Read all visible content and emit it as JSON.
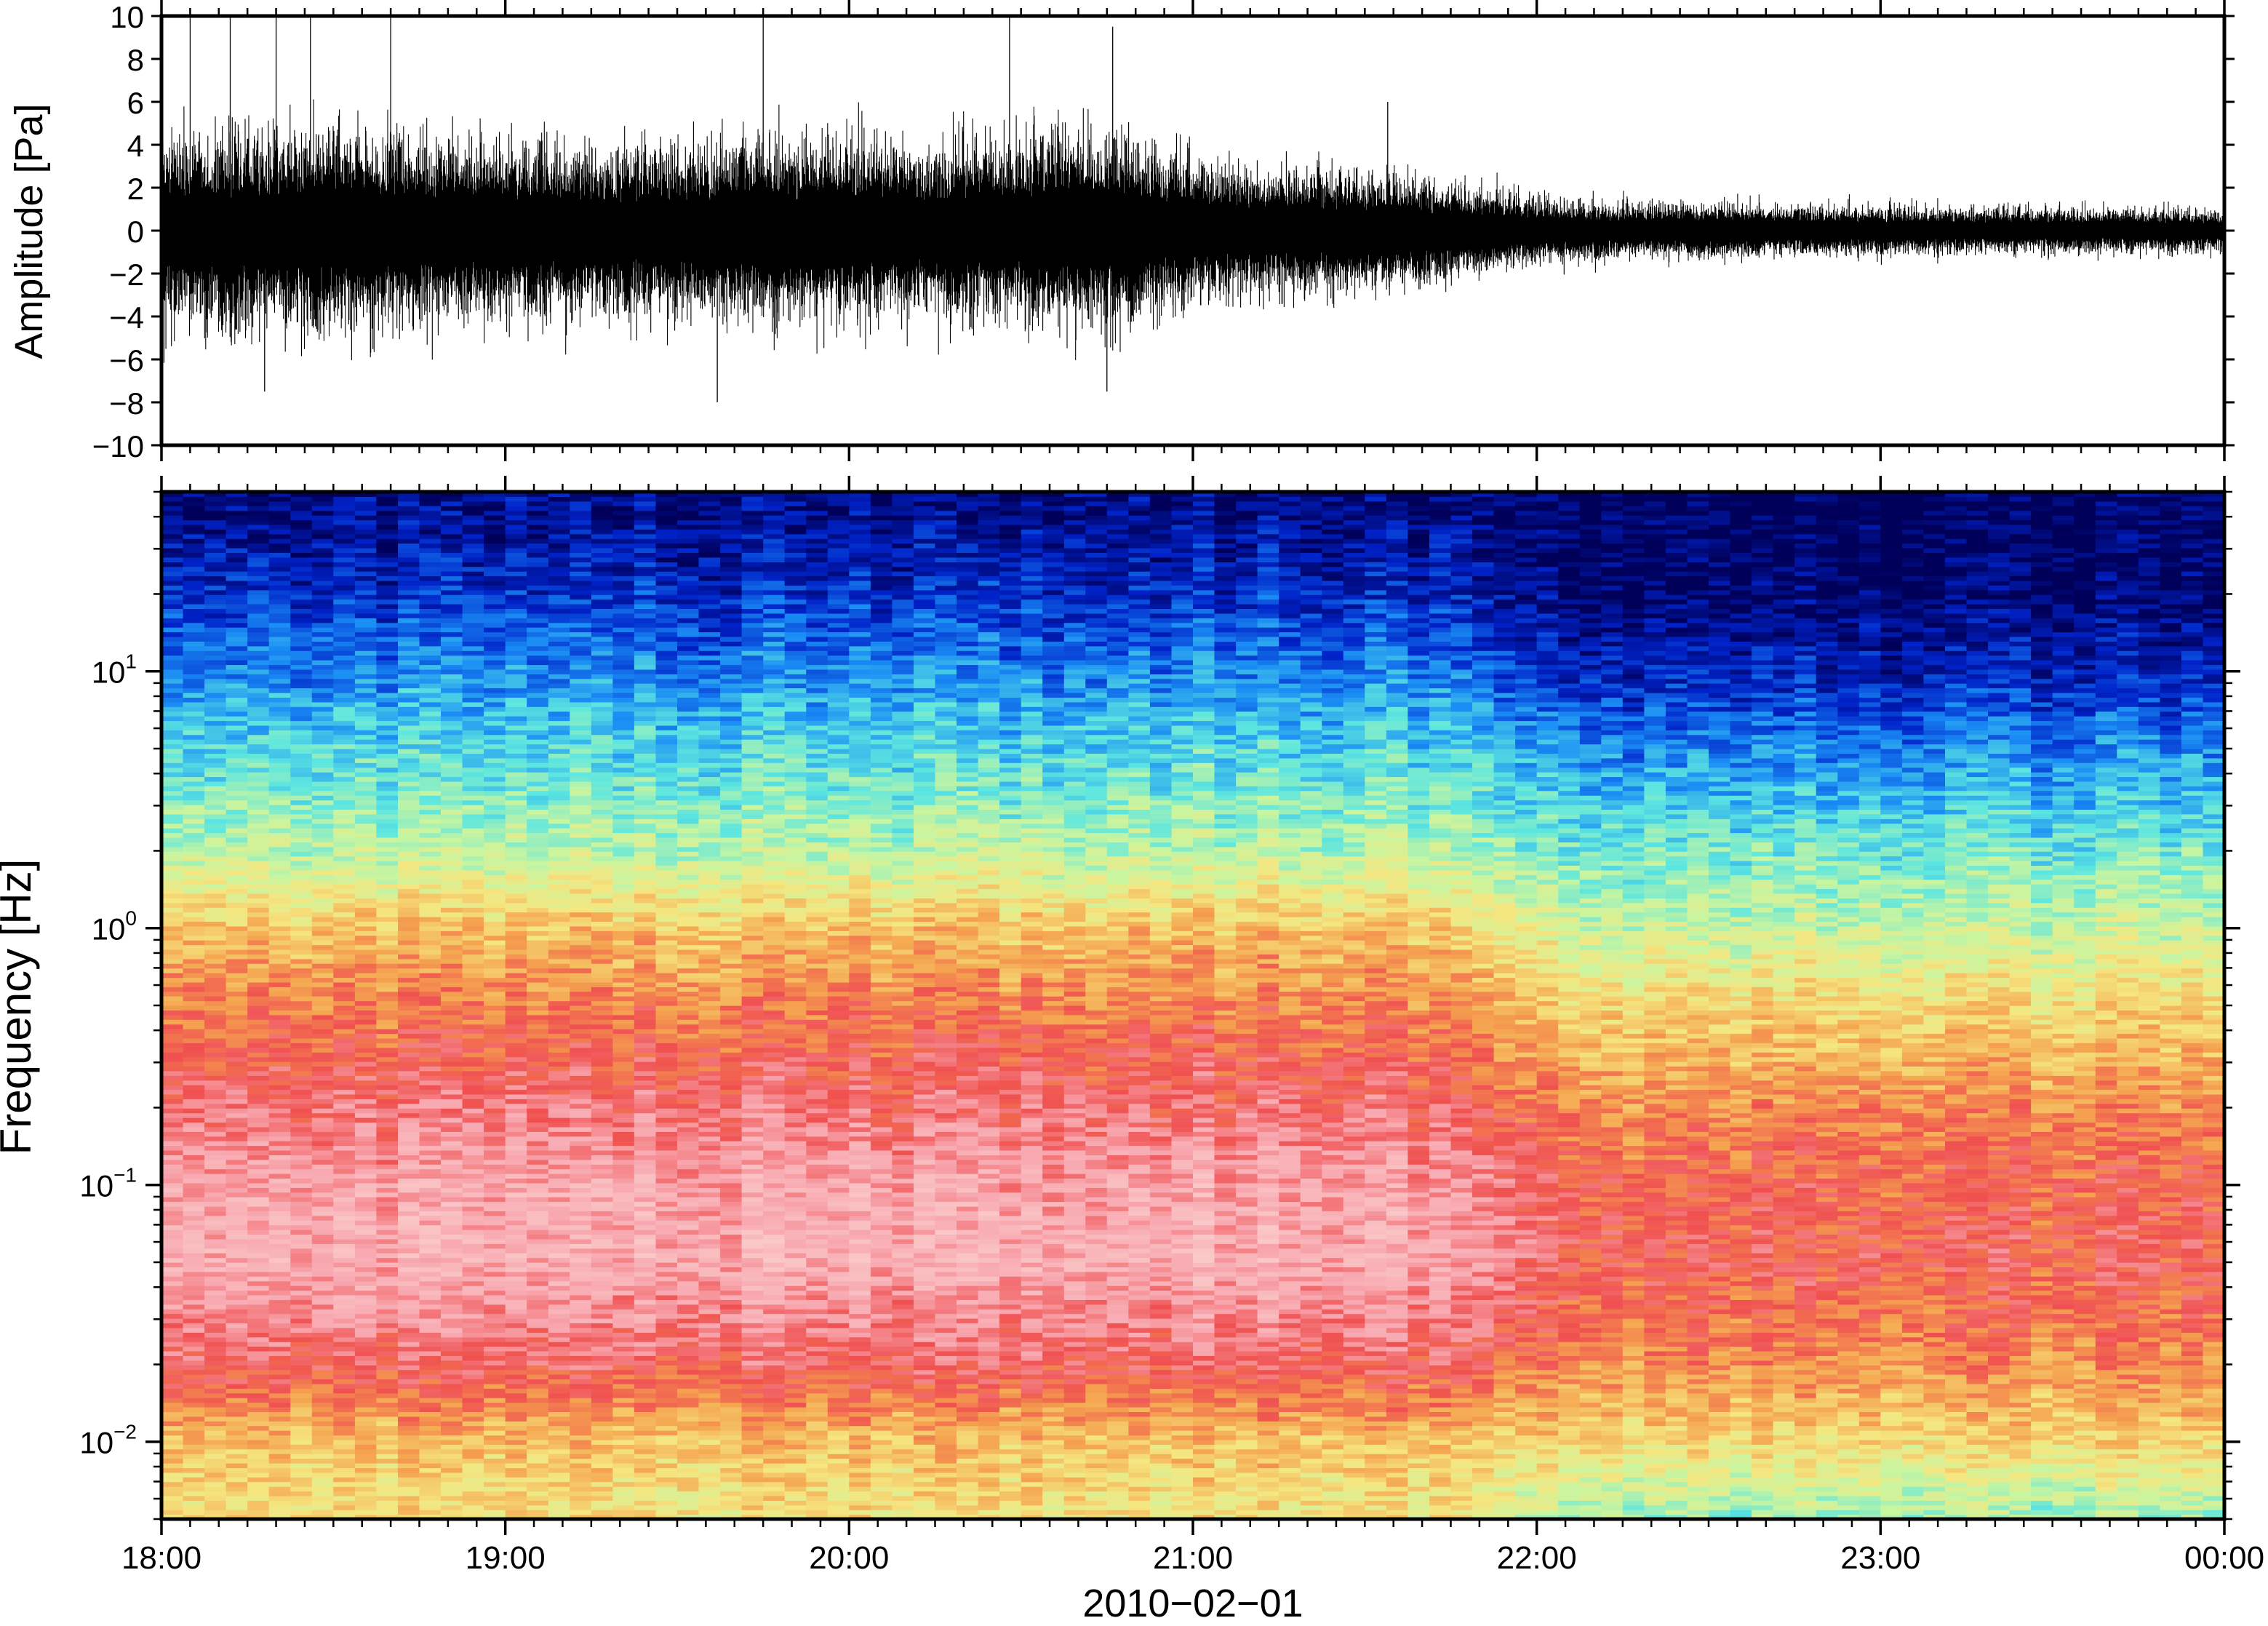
{
  "chart_data": [
    {
      "type": "line",
      "panel": "waveform",
      "ylabel": "Amplitude [Pa]",
      "ylim": [
        -10,
        10
      ],
      "yticks": [
        -10,
        -8,
        -6,
        -4,
        -2,
        0,
        2,
        4,
        6,
        8,
        10
      ],
      "ytick_labels": [
        "−10",
        "−8",
        "−6",
        "−4",
        "−2",
        "0",
        "2",
        "4",
        "6",
        "8",
        "10"
      ],
      "x_range": [
        "18:00",
        "00:00"
      ],
      "series": [
        {
          "x": [
            "18:00",
            "18:15",
            "18:30",
            "18:45",
            "19:00",
            "19:15",
            "19:30",
            "19:45",
            "20:00",
            "20:15",
            "20:30",
            "20:45",
            "21:00",
            "21:15",
            "21:30",
            "21:45",
            "22:00",
            "22:15",
            "22:30",
            "22:45",
            "23:00",
            "23:15",
            "23:30",
            "23:45",
            "00:00"
          ],
          "envelope_pa": [
            6.0,
            6.5,
            6.5,
            6.0,
            5.5,
            5.5,
            5.5,
            6.0,
            6.0,
            5.5,
            6.0,
            6.5,
            4.5,
            4.0,
            3.8,
            3.2,
            2.2,
            1.8,
            1.8,
            1.6,
            1.6,
            1.5,
            1.5,
            1.4,
            1.4
          ],
          "peaks_pa": [
            {
              "time": "18:05",
              "value": 10
            },
            {
              "time": "18:12",
              "value": 10
            },
            {
              "time": "18:20",
              "value": 10
            },
            {
              "time": "18:26",
              "value": 10
            },
            {
              "time": "18:40",
              "value": 10
            },
            {
              "time": "19:45",
              "value": 10
            },
            {
              "time": "20:28",
              "value": 10
            },
            {
              "time": "20:46",
              "value": 9.5
            },
            {
              "time": "21:34",
              "value": 6
            },
            {
              "time": "18:18",
              "value": -7.5
            },
            {
              "time": "19:37",
              "value": -8
            },
            {
              "time": "20:45",
              "value": -7.5
            }
          ]
        }
      ]
    },
    {
      "type": "heatmap",
      "panel": "spectrogram",
      "ylabel": "Frequency [Hz]",
      "xlabel": "2010−02−01",
      "y_scale": "log",
      "ylim": [
        0.005,
        50
      ],
      "yticks": [
        0.01,
        0.1,
        1,
        10
      ],
      "ytick_labels": [
        {
          "base": "10",
          "exp": "−2"
        },
        {
          "base": "10",
          "exp": "−1"
        },
        {
          "base": "10",
          "exp": "0"
        },
        {
          "base": "10",
          "exp": "1"
        }
      ],
      "x_tick_labels": [
        "18:00",
        "19:00",
        "20:00",
        "21:00",
        "22:00",
        "23:00",
        "00:00"
      ],
      "colormap_stops": [
        "#00005a",
        "#0022c8",
        "#1a8cf5",
        "#5ce6e0",
        "#c8f5a0",
        "#f5e680",
        "#f5a550",
        "#f05050",
        "#f8a8b0",
        "#fac8c8"
      ],
      "color_scale_note": "power increases from dark blue (low) through cyan, green, yellow, orange, red to pink (high)",
      "spectral_profile": {
        "freq_hz": [
          40,
          20,
          10,
          5,
          2,
          1,
          0.5,
          0.2,
          0.1,
          0.05,
          0.02,
          0.01,
          0.005
        ],
        "early_level": [
          0.05,
          0.12,
          0.22,
          0.32,
          0.44,
          0.62,
          0.72,
          0.82,
          0.9,
          0.92,
          0.8,
          0.62,
          0.56
        ],
        "late_level": [
          0.0,
          0.02,
          0.1,
          0.22,
          0.36,
          0.46,
          0.58,
          0.7,
          0.76,
          0.78,
          0.7,
          0.58,
          0.4
        ]
      },
      "transition_time": "21:50"
    }
  ]
}
